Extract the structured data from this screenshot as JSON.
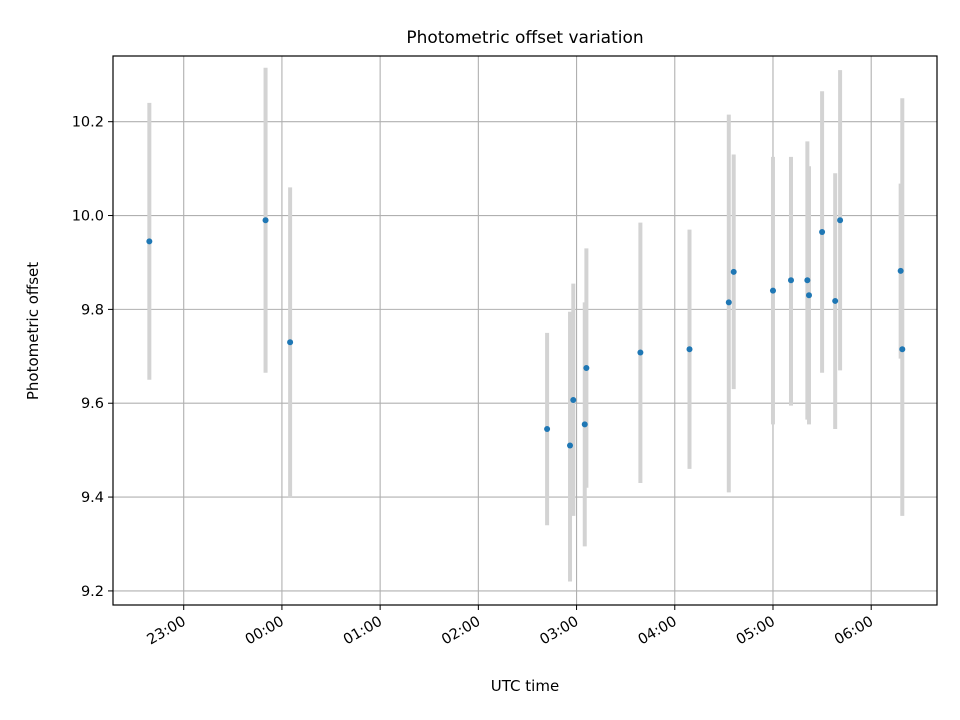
{
  "chart_data": {
    "type": "scatter",
    "title": "Photometric offset variation",
    "xlabel": "UTC time",
    "ylabel": "Photometric offset",
    "x_tick_labels": [
      "23:00",
      "00:00",
      "01:00",
      "02:00",
      "03:00",
      "04:00",
      "05:00",
      "06:00"
    ],
    "y_tick_labels": [
      "9.2",
      "9.4",
      "9.6",
      "9.8",
      "10.0",
      "10.2"
    ],
    "y_ticks": [
      9.2,
      9.4,
      9.6,
      9.8,
      10.0,
      10.2
    ],
    "ylim": [
      9.17,
      10.34
    ],
    "xlim_hours": [
      -1.72,
      6.67
    ],
    "grid": true,
    "marker_color": "#1f77b4",
    "errorbar_color": "#d3d3d3",
    "points": [
      {
        "t": "22:39",
        "y": 9.945,
        "err_low": 9.65,
        "err_high": 10.24
      },
      {
        "t": "23:50",
        "y": 9.99,
        "err_low": 9.665,
        "err_high": 10.315
      },
      {
        "t": "00:05",
        "y": 9.73,
        "err_low": 9.4,
        "err_high": 10.06
      },
      {
        "t": "02:42",
        "y": 9.545,
        "err_low": 9.34,
        "err_high": 9.75
      },
      {
        "t": "02:56",
        "y": 9.51,
        "err_low": 9.22,
        "err_high": 9.795
      },
      {
        "t": "02:58",
        "y": 9.607,
        "err_low": 9.36,
        "err_high": 9.855
      },
      {
        "t": "03:05",
        "y": 9.555,
        "err_low": 9.295,
        "err_high": 9.815
      },
      {
        "t": "03:06",
        "y": 9.675,
        "err_low": 9.42,
        "err_high": 9.93
      },
      {
        "t": "03:39",
        "y": 9.708,
        "err_low": 9.43,
        "err_high": 9.985
      },
      {
        "t": "04:09",
        "y": 9.715,
        "err_low": 9.46,
        "err_high": 9.97
      },
      {
        "t": "04:33",
        "y": 9.815,
        "err_low": 9.41,
        "err_high": 10.215
      },
      {
        "t": "04:36",
        "y": 9.88,
        "err_low": 9.63,
        "err_high": 10.13
      },
      {
        "t": "05:00",
        "y": 9.84,
        "err_low": 9.555,
        "err_high": 10.125
      },
      {
        "t": "05:11",
        "y": 9.862,
        "err_low": 9.595,
        "err_high": 10.125
      },
      {
        "t": "05:21",
        "y": 9.862,
        "err_low": 9.565,
        "err_high": 10.158
      },
      {
        "t": "05:22",
        "y": 9.83,
        "err_low": 9.555,
        "err_high": 10.105
      },
      {
        "t": "05:30",
        "y": 9.965,
        "err_low": 9.665,
        "err_high": 10.265
      },
      {
        "t": "05:38",
        "y": 9.818,
        "err_low": 9.545,
        "err_high": 10.09
      },
      {
        "t": "05:41",
        "y": 9.99,
        "err_low": 9.67,
        "err_high": 10.31
      },
      {
        "t": "06:18",
        "y": 9.882,
        "err_low": 9.695,
        "err_high": 10.068
      },
      {
        "t": "06:19",
        "y": 9.715,
        "err_low": 9.36,
        "err_high": 10.25
      }
    ]
  }
}
